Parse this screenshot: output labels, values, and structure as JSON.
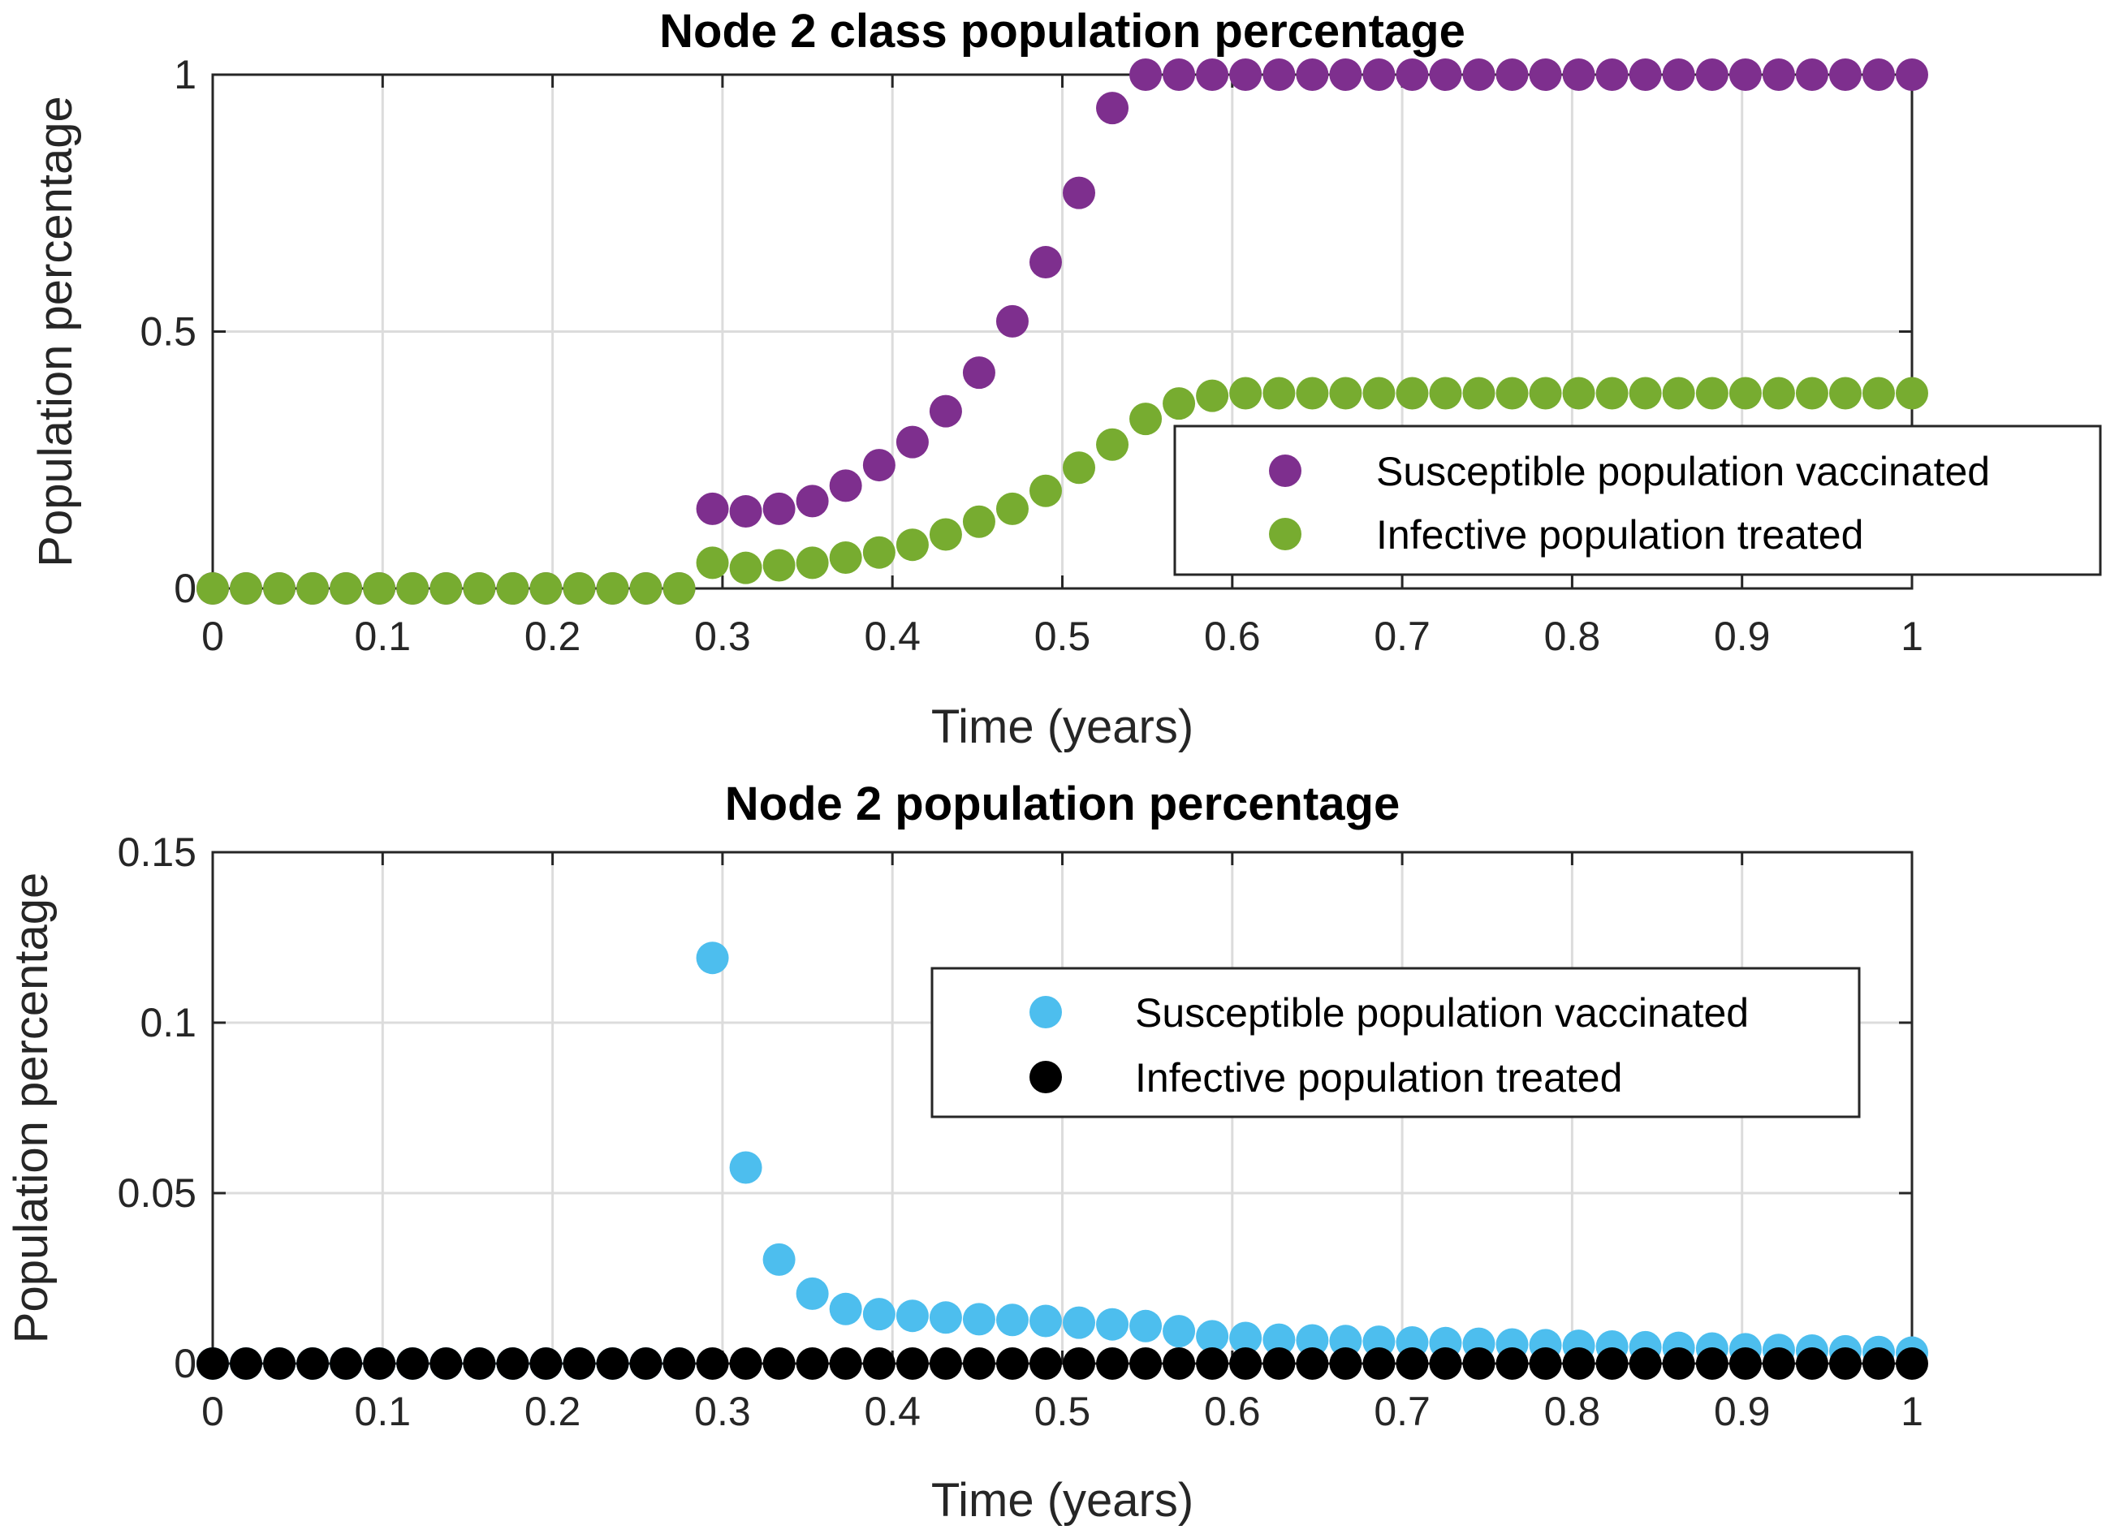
{
  "chart_data": [
    {
      "type": "scatter",
      "title": "Node 2 class population percentage",
      "xlabel": "Time (years)",
      "ylabel": "Population percentage",
      "xlim": [
        0,
        1
      ],
      "ylim": [
        0,
        1
      ],
      "xticks": [
        "0",
        "0.1",
        "0.2",
        "0.3",
        "0.4",
        "0.5",
        "0.6",
        "0.7",
        "0.8",
        "0.9",
        "1"
      ],
      "yticks": [
        "0",
        "0.5",
        "1"
      ],
      "grid": true,
      "legend_position": "lower-right",
      "x": [
        0,
        0.0196,
        0.0392,
        0.0588,
        0.0784,
        0.098,
        0.1176,
        0.1373,
        0.1569,
        0.1765,
        0.1961,
        0.2157,
        0.2353,
        0.2549,
        0.2745,
        0.2941,
        0.3137,
        0.3333,
        0.3529,
        0.3725,
        0.3922,
        0.4118,
        0.4314,
        0.451,
        0.4706,
        0.4902,
        0.5098,
        0.5294,
        0.549,
        0.5686,
        0.5882,
        0.6078,
        0.6275,
        0.6471,
        0.6667,
        0.6863,
        0.7059,
        0.7255,
        0.7451,
        0.7647,
        0.7843,
        0.8039,
        0.8235,
        0.8431,
        0.8627,
        0.8824,
        0.902,
        0.9216,
        0.9412,
        0.9608,
        0.9804,
        1
      ],
      "series": [
        {
          "name": "Susceptible population vaccinated",
          "color": "#7e2f8e",
          "values": [
            0,
            0,
            0,
            0,
            0,
            0,
            0,
            0,
            0,
            0,
            0,
            0,
            0,
            0,
            0,
            0.155,
            0.15,
            0.155,
            0.17,
            0.2,
            0.24,
            0.285,
            0.345,
            0.42,
            0.52,
            0.635,
            0.77,
            0.935,
            1,
            1,
            1,
            1,
            1,
            1,
            1,
            1,
            1,
            1,
            1,
            1,
            1,
            1,
            1,
            1,
            1,
            1,
            1,
            1,
            1,
            1,
            1,
            1
          ]
        },
        {
          "name": "Infective population treated",
          "color": "#77ac30",
          "values": [
            0,
            0,
            0,
            0,
            0,
            0,
            0,
            0,
            0,
            0,
            0,
            0,
            0,
            0,
            0,
            0.05,
            0.04,
            0.045,
            0.05,
            0.06,
            0.07,
            0.085,
            0.105,
            0.13,
            0.155,
            0.19,
            0.235,
            0.28,
            0.33,
            0.36,
            0.375,
            0.38,
            0.38,
            0.38,
            0.38,
            0.38,
            0.38,
            0.38,
            0.38,
            0.38,
            0.38,
            0.38,
            0.38,
            0.38,
            0.38,
            0.38,
            0.38,
            0.38,
            0.38,
            0.38,
            0.38,
            0.38
          ]
        }
      ]
    },
    {
      "type": "scatter",
      "title": "Node 2 population percentage",
      "xlabel": "Time (years)",
      "ylabel": "Population percentage",
      "xlim": [
        0,
        1
      ],
      "ylim": [
        0,
        0.15
      ],
      "xticks": [
        "0",
        "0.1",
        "0.2",
        "0.3",
        "0.4",
        "0.5",
        "0.6",
        "0.7",
        "0.8",
        "0.9",
        "1"
      ],
      "yticks": [
        "0",
        "0.05",
        "0.1",
        "0.15"
      ],
      "grid": true,
      "legend_position": "upper-right",
      "x": [
        0,
        0.0196,
        0.0392,
        0.0588,
        0.0784,
        0.098,
        0.1176,
        0.1373,
        0.1569,
        0.1765,
        0.1961,
        0.2157,
        0.2353,
        0.2549,
        0.2745,
        0.2941,
        0.3137,
        0.3333,
        0.3529,
        0.3725,
        0.3922,
        0.4118,
        0.4314,
        0.451,
        0.4706,
        0.4902,
        0.5098,
        0.5294,
        0.549,
        0.5686,
        0.5882,
        0.6078,
        0.6275,
        0.6471,
        0.6667,
        0.6863,
        0.7059,
        0.7255,
        0.7451,
        0.7647,
        0.7843,
        0.8039,
        0.8235,
        0.8431,
        0.8627,
        0.8824,
        0.902,
        0.9216,
        0.9412,
        0.9608,
        0.9804,
        1
      ],
      "series": [
        {
          "name": "Susceptible population vaccinated",
          "color": "#4dbeee",
          "values": [
            0,
            0,
            0,
            0,
            0,
            0,
            0,
            0,
            0,
            0,
            0,
            0,
            0,
            0,
            0,
            0.119,
            0.0575,
            0.0305,
            0.0205,
            0.016,
            0.0145,
            0.014,
            0.0135,
            0.013,
            0.0128,
            0.0125,
            0.012,
            0.0115,
            0.011,
            0.0095,
            0.008,
            0.0075,
            0.007,
            0.0068,
            0.0066,
            0.0064,
            0.0062,
            0.006,
            0.0058,
            0.0056,
            0.0054,
            0.0052,
            0.005,
            0.0048,
            0.0046,
            0.0044,
            0.0042,
            0.004,
            0.0038,
            0.0036,
            0.0034,
            0.0032
          ]
        },
        {
          "name": "Infective population treated",
          "color": "#000000",
          "values": [
            0,
            0,
            0,
            0,
            0,
            0,
            0,
            0,
            0,
            0,
            0,
            0,
            0,
            0,
            0,
            0,
            0,
            0,
            0,
            0,
            0,
            0,
            0,
            0,
            0,
            0,
            0,
            0,
            0,
            0,
            0,
            0,
            0,
            0,
            0,
            0,
            0,
            0,
            0,
            0,
            0,
            0,
            0,
            0,
            0,
            0,
            0,
            0,
            0,
            0,
            0,
            0
          ]
        }
      ]
    }
  ]
}
